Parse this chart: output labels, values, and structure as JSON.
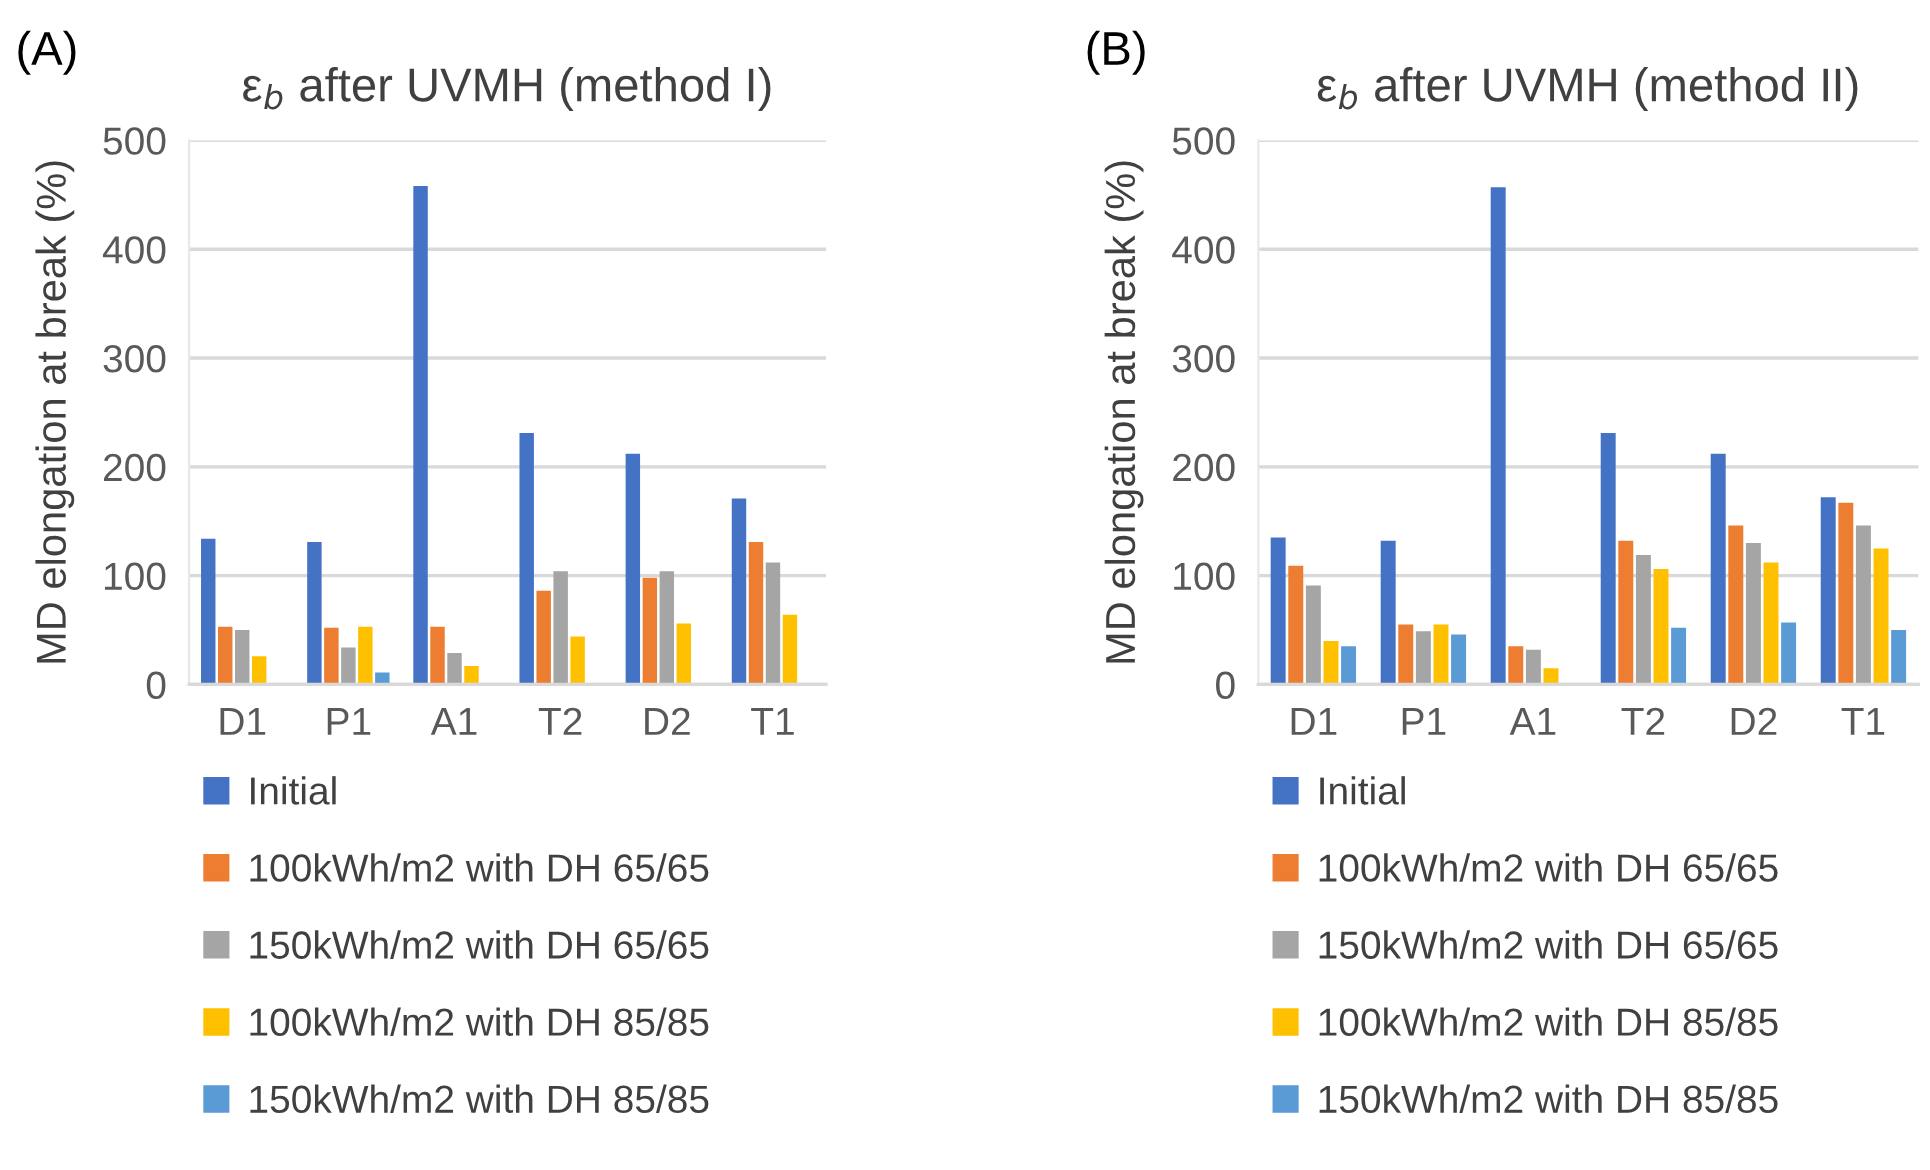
{
  "chart_data": [
    {
      "type": "bar",
      "title": "ε$_{b}$ after UVMH (method I)",
      "ylabel": "MD elongation at break (%)",
      "annotations": [
        "(A)"
      ],
      "categories": [
        "D1",
        "P1",
        "A1",
        "T2",
        "D2",
        "T1"
      ],
      "series": [
        {
          "name": "Initial",
          "color": "#4472c4",
          "values": [
            134,
            131,
            458,
            231,
            212,
            171
          ]
        },
        {
          "name": "100kWh/m2 with DH 65/65",
          "color": "#ed7d31",
          "values": [
            53,
            52,
            53,
            86,
            98,
            131
          ]
        },
        {
          "name": "150kWh/m2 with DH 65/65",
          "color": "#a5a5a5",
          "values": [
            50,
            34,
            29,
            104,
            104,
            112
          ]
        },
        {
          "name": "100kWh/m2 with DH 85/85",
          "color": "#ffc000",
          "values": [
            26,
            53,
            17,
            44,
            56,
            64
          ]
        },
        {
          "name": "150kWh/m2 with DH 85/85",
          "color": "#5b9bd5",
          "values": [
            null,
            11,
            null,
            null,
            null,
            null
          ]
        }
      ],
      "ylim": [
        0,
        500
      ],
      "yticks": [
        0,
        100,
        200,
        300,
        400,
        500
      ],
      "grid": "y",
      "legend": "bottom"
    },
    {
      "type": "bar",
      "title": "ε$_{b}$ after UVMH (method II)",
      "ylabel": "MD elongation at break (%)",
      "annotations": [
        "(B)"
      ],
      "categories": [
        "D1",
        "P1",
        "A1",
        "T2",
        "D2",
        "T1"
      ],
      "series": [
        {
          "name": "Initial",
          "color": "#4472c4",
          "values": [
            135,
            132,
            457,
            231,
            212,
            172
          ]
        },
        {
          "name": "100kWh/m2 with DH 65/65",
          "color": "#ed7d31",
          "values": [
            109,
            55,
            35,
            132,
            146,
            167
          ]
        },
        {
          "name": "150kWh/m2 with DH 65/65",
          "color": "#a5a5a5",
          "values": [
            91,
            49,
            32,
            119,
            130,
            146
          ]
        },
        {
          "name": "100kWh/m2 with DH 85/85",
          "color": "#ffc000",
          "values": [
            40,
            55,
            15,
            106,
            112,
            125
          ]
        },
        {
          "name": "150kWh/m2 with DH 85/85",
          "color": "#5b9bd5",
          "values": [
            35,
            46,
            null,
            52,
            57,
            50
          ]
        }
      ],
      "ylim": [
        0,
        500
      ],
      "yticks": [
        0,
        100,
        200,
        300,
        400,
        500
      ],
      "grid": "y",
      "legend": "bottom"
    }
  ]
}
